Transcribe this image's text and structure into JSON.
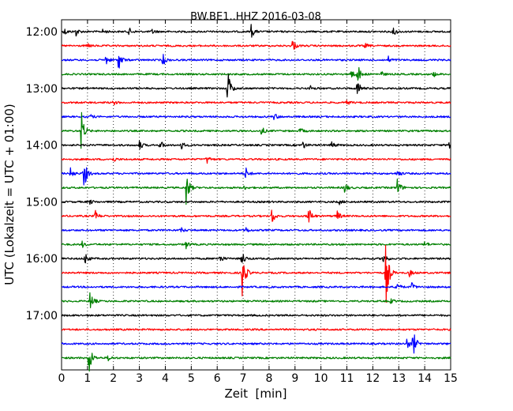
{
  "chart_data": {
    "type": "line",
    "title": "BW.BE1..HHZ 2016-03-08",
    "xlabel": "Zeit  [min]",
    "ylabel": "UTC (Lokalzeit = UTC + 01:00)",
    "xlim": [
      0,
      15
    ],
    "x_ticks": [
      "0",
      "1",
      "2",
      "3",
      "4",
      "5",
      "6",
      "7",
      "8",
      "9",
      "10",
      "11",
      "12",
      "13",
      "14",
      "15"
    ],
    "y_tick_labels": [
      "12:00",
      "13:00",
      "14:00",
      "15:00",
      "16:00",
      "17:00"
    ],
    "y_tick_rows": [
      0,
      4,
      8,
      12,
      16,
      20
    ],
    "grid": true,
    "trace_colors": [
      "#000000",
      "#ff0000",
      "#0000ff",
      "#008000"
    ],
    "traces": [
      {
        "start": "12:00",
        "color": "#000000",
        "events": [
          {
            "t": 0.1,
            "a": 0.5
          },
          {
            "t": 0.55,
            "a": 0.6
          },
          {
            "t": 1.6,
            "a": 0.35
          },
          {
            "t": 2.6,
            "a": 0.5
          },
          {
            "t": 3.5,
            "a": 0.35
          },
          {
            "t": 7.3,
            "a": 1.0
          },
          {
            "t": 12.8,
            "a": 0.6
          }
        ]
      },
      {
        "start": "12:15",
        "color": "#ff0000",
        "events": [
          {
            "t": 8.9,
            "a": 0.9
          },
          {
            "t": 1.0,
            "a": 0.3
          },
          {
            "t": 11.7,
            "a": 0.3
          }
        ]
      },
      {
        "start": "12:30",
        "color": "#0000ff",
        "events": [
          {
            "t": 1.7,
            "a": 0.7
          },
          {
            "t": 2.2,
            "a": 1.4
          },
          {
            "t": 3.9,
            "a": 0.8
          },
          {
            "t": 12.6,
            "a": 0.4
          }
        ]
      },
      {
        "start": "12:45",
        "color": "#008000",
        "events": [
          {
            "t": 11.1,
            "a": 1.0
          },
          {
            "t": 11.4,
            "a": 1.5
          },
          {
            "t": 12.3,
            "a": 0.4
          },
          {
            "t": 14.3,
            "a": 0.5
          }
        ]
      },
      {
        "start": "13:00",
        "color": "#000000",
        "events": [
          {
            "t": 6.4,
            "a": 2.8
          },
          {
            "t": 11.4,
            "a": 1.2
          },
          {
            "t": 9.6,
            "a": 0.3
          }
        ]
      },
      {
        "start": "13:15",
        "color": "#ff0000",
        "events": [
          {
            "t": 2.0,
            "a": 0.3
          },
          {
            "t": 11.0,
            "a": 0.3
          }
        ]
      },
      {
        "start": "13:30",
        "color": "#0000ff",
        "events": [
          {
            "t": 8.2,
            "a": 0.5
          },
          {
            "t": 1.1,
            "a": 0.3
          }
        ]
      },
      {
        "start": "13:45",
        "color": "#008000",
        "events": [
          {
            "t": 0.75,
            "a": 3.0
          },
          {
            "t": 7.7,
            "a": 0.6
          },
          {
            "t": 9.2,
            "a": 0.4
          }
        ]
      },
      {
        "start": "14:00",
        "color": "#000000",
        "events": [
          {
            "t": 3.0,
            "a": 0.6
          },
          {
            "t": 3.8,
            "a": 0.6
          },
          {
            "t": 4.6,
            "a": 0.6
          },
          {
            "t": 9.3,
            "a": 0.5
          },
          {
            "t": 10.4,
            "a": 0.6
          },
          {
            "t": 14.95,
            "a": 0.8
          }
        ]
      },
      {
        "start": "14:15",
        "color": "#ff0000",
        "events": [
          {
            "t": 5.6,
            "a": 0.6
          },
          {
            "t": 2.0,
            "a": 0.3
          }
        ]
      },
      {
        "start": "14:30",
        "color": "#0000ff",
        "events": [
          {
            "t": 0.35,
            "a": 0.8
          },
          {
            "t": 0.85,
            "a": 2.4
          },
          {
            "t": 7.1,
            "a": 0.8
          },
          {
            "t": 12.95,
            "a": 0.5
          }
        ]
      },
      {
        "start": "14:45",
        "color": "#008000",
        "events": [
          {
            "t": 4.8,
            "a": 2.6
          },
          {
            "t": 10.9,
            "a": 0.8
          },
          {
            "t": 12.95,
            "a": 1.3
          },
          {
            "t": 7.0,
            "a": 0.3
          }
        ]
      },
      {
        "start": "15:00",
        "color": "#000000",
        "events": [
          {
            "t": 1.1,
            "a": 0.3
          },
          {
            "t": 10.7,
            "a": 0.3
          }
        ]
      },
      {
        "start": "15:15",
        "color": "#ff0000",
        "events": [
          {
            "t": 1.3,
            "a": 0.7
          },
          {
            "t": 8.1,
            "a": 1.2
          },
          {
            "t": 9.5,
            "a": 1.6
          },
          {
            "t": 10.6,
            "a": 0.9
          }
        ]
      },
      {
        "start": "15:30",
        "color": "#0000ff",
        "events": [
          {
            "t": 4.6,
            "a": 0.4
          },
          {
            "t": 7.1,
            "a": 0.4
          }
        ]
      },
      {
        "start": "15:45",
        "color": "#008000",
        "events": [
          {
            "t": 0.8,
            "a": 0.4
          },
          {
            "t": 4.8,
            "a": 0.5
          },
          {
            "t": 14.0,
            "a": 0.4
          }
        ]
      },
      {
        "start": "16:00",
        "color": "#000000",
        "events": [
          {
            "t": 0.9,
            "a": 0.9
          },
          {
            "t": 6.1,
            "a": 0.6
          },
          {
            "t": 6.95,
            "a": 1.0
          },
          {
            "t": 12.4,
            "a": 1.0
          }
        ]
      },
      {
        "start": "16:15",
        "color": "#ff0000",
        "events": [
          {
            "t": 6.95,
            "a": 4.0
          },
          {
            "t": 12.5,
            "a": 4.6
          },
          {
            "t": 13.4,
            "a": 0.5
          }
        ]
      },
      {
        "start": "16:30",
        "color": "#0000ff",
        "events": [
          {
            "t": 12.9,
            "a": 0.9
          },
          {
            "t": 13.5,
            "a": 0.5
          }
        ]
      },
      {
        "start": "16:45",
        "color": "#008000",
        "events": [
          {
            "t": 1.1,
            "a": 1.4
          },
          {
            "t": 12.7,
            "a": 0.3
          }
        ]
      },
      {
        "start": "17:00",
        "color": "#000000",
        "events": []
      },
      {
        "start": "17:15",
        "color": "#ff0000",
        "events": []
      },
      {
        "start": "17:30",
        "color": "#0000ff",
        "events": [
          {
            "t": 13.3,
            "a": 0.8
          },
          {
            "t": 13.55,
            "a": 1.9
          }
        ]
      },
      {
        "start": "17:45",
        "color": "#008000",
        "events": [
          {
            "t": 1.05,
            "a": 2.4
          },
          {
            "t": 1.8,
            "a": 0.4
          }
        ]
      }
    ]
  }
}
